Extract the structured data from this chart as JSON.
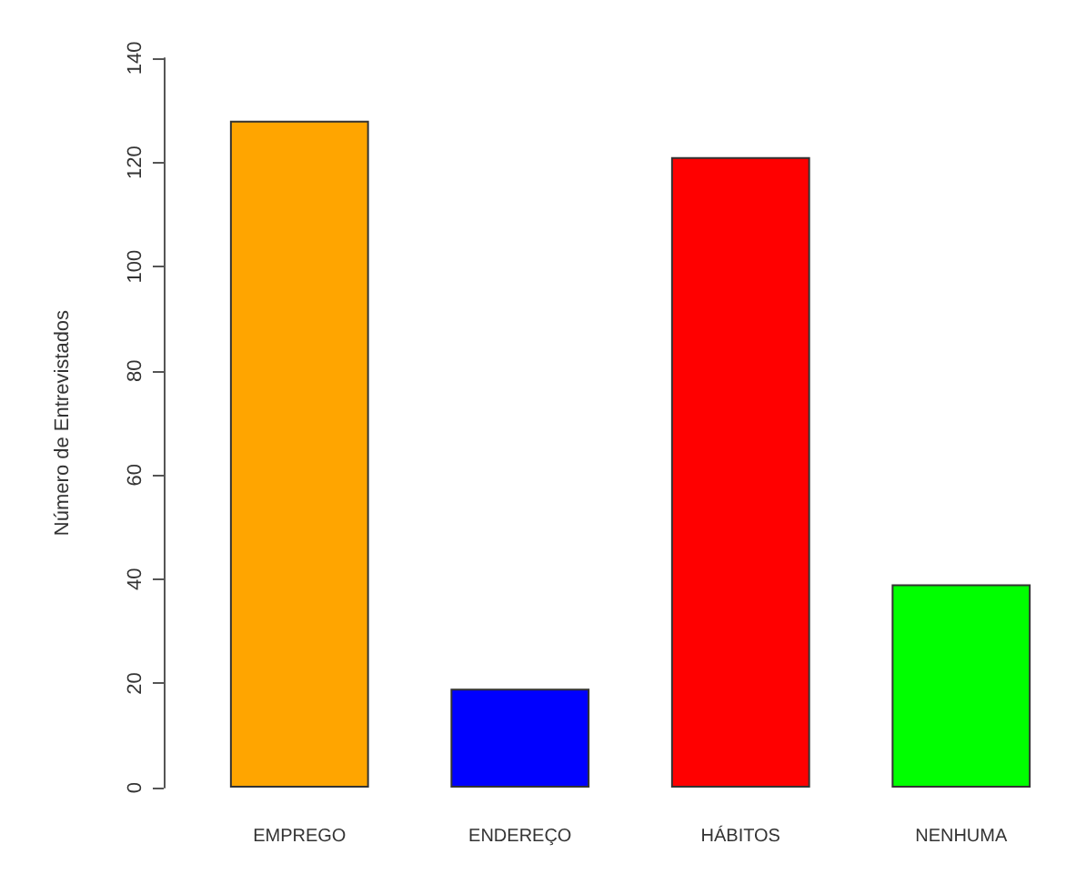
{
  "chart_data": {
    "type": "bar",
    "ylabel": "Número de Entrevistados",
    "categories": [
      "EMPREGO",
      "ENDEREÇO",
      "HÁBITOS",
      "NENHUMA"
    ],
    "values": [
      128,
      19,
      121,
      39
    ],
    "colors": [
      "#ffa500",
      "#0000ff",
      "#ff0000",
      "#00ff00"
    ],
    "ylim": [
      0,
      140
    ],
    "yticks": [
      0,
      20,
      40,
      60,
      80,
      100,
      120,
      140
    ],
    "grid": false
  }
}
